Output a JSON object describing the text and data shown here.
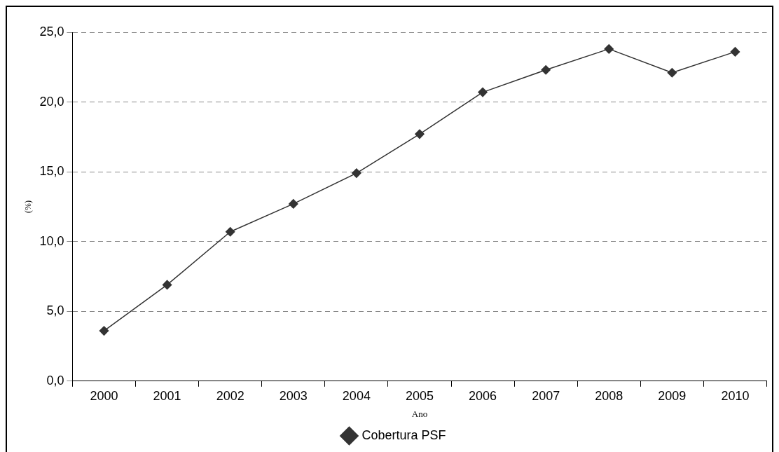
{
  "chart_data": {
    "type": "line",
    "xlabel": "Ano",
    "ylabel": "(%)",
    "categories": [
      "2000",
      "2001",
      "2002",
      "2003",
      "2004",
      "2005",
      "2006",
      "2007",
      "2008",
      "2009",
      "2010"
    ],
    "series": [
      {
        "name": "Cobertura PSF",
        "color": "#333333",
        "values": [
          3.6,
          6.9,
          10.7,
          12.7,
          14.9,
          17.7,
          20.7,
          22.3,
          23.8,
          22.1,
          23.6
        ]
      }
    ],
    "ylim": [
      0,
      25
    ],
    "yticks": [
      {
        "value": 0,
        "label": "0,0"
      },
      {
        "value": 5,
        "label": "5,0"
      },
      {
        "value": 10,
        "label": "10,0"
      },
      {
        "value": 15,
        "label": "15,0"
      },
      {
        "value": 20,
        "label": "20,0"
      },
      {
        "value": 25,
        "label": "25,0"
      }
    ],
    "grid": "y",
    "legend": "bottom",
    "marker": "diamond",
    "line_style": "solid"
  }
}
